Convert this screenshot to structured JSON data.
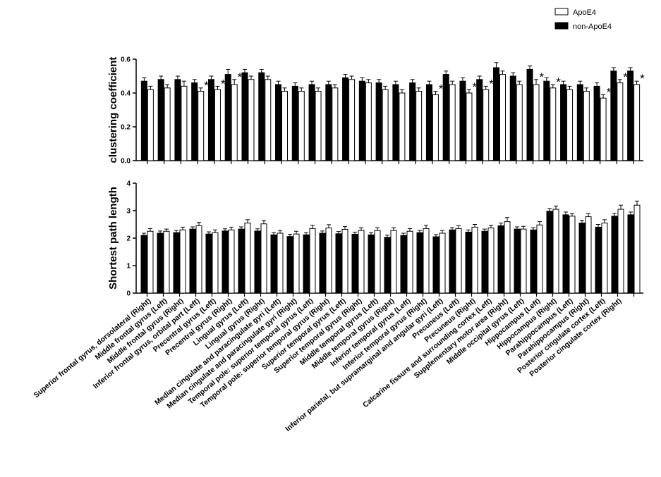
{
  "legend": {
    "apoe4": "ApoE4",
    "non_apoe4": "non-ApoE4"
  },
  "colors": {
    "non_apoe4": "#000000",
    "apoe4": "#ffffff",
    "stroke": "#000000"
  },
  "significance_marker": "*",
  "chart_data": [
    {
      "type": "bar",
      "ylabel": "clustering coefficient",
      "ylim": [
        0,
        0.6
      ],
      "yticks": [
        "0.0",
        "0.2",
        "0.4",
        "0.6"
      ],
      "categories": [
        "Superior frontal gyrus, dorsolateral (Right)",
        "Middle frontal gyrus (Left)",
        "Middle frontal gyrus (Right)",
        "Inferior frontal gyrus, orbital part (Left)",
        "Precentral gyrus (Left)",
        "Precentral gyrus (Right)",
        "Lingual gyrus (Left)",
        "Lingual gyrus (Right)",
        "Median cingulate and paracingulate gyri (Left)",
        "Median cingulate and paracingulate gyri (Right)",
        "Temporal pole: superior temporal gyrus (Left)",
        "Temporal pole: superior temporal gyrus (Right)",
        "Superior temporal gyrus (Left)",
        "Superior temporal gyrus (Right)",
        "Middle temporal gyrus (Left)",
        "Middle temporal gyrus (Right)",
        "Inferior temporal gyrus (Left)",
        "Inferior temporal gyrus (Right)",
        "Inferior parietal, but supramarginal and angular gyri (Left)",
        "Precuneus (Left)",
        "Precuneus (Right)",
        "Calcarine fissure and surrounding cortex (Left)",
        "Supplementary motor area (Right)",
        "Middle occipital gyrus (Left)",
        "Hippocampus (Left)",
        "Hippocampus (Right)",
        "Parahippocampus (Left)",
        "Parahippocampus (Right)",
        "Posterior cingulate cortex (Left)",
        "Posterior cingulate cortex (Right)"
      ],
      "series": [
        {
          "name": "non-ApoE4",
          "values": [
            0.47,
            0.48,
            0.48,
            0.46,
            0.48,
            0.51,
            0.52,
            0.52,
            0.45,
            0.44,
            0.45,
            0.45,
            0.49,
            0.47,
            0.46,
            0.45,
            0.46,
            0.45,
            0.51,
            0.47,
            0.48,
            0.55,
            0.5,
            0.54,
            0.47,
            0.45,
            0.45,
            0.44,
            0.53,
            0.53
          ],
          "errors": [
            0.02,
            0.02,
            0.02,
            0.02,
            0.02,
            0.03,
            0.02,
            0.02,
            0.02,
            0.02,
            0.02,
            0.02,
            0.02,
            0.02,
            0.02,
            0.02,
            0.02,
            0.02,
            0.02,
            0.02,
            0.02,
            0.03,
            0.02,
            0.02,
            0.02,
            0.02,
            0.02,
            0.02,
            0.02,
            0.02
          ]
        },
        {
          "name": "ApoE4",
          "values": [
            0.42,
            0.43,
            0.44,
            0.41,
            0.42,
            0.45,
            0.48,
            0.48,
            0.41,
            0.41,
            0.41,
            0.43,
            0.48,
            0.46,
            0.42,
            0.4,
            0.41,
            0.39,
            0.45,
            0.4,
            0.42,
            0.51,
            0.45,
            0.45,
            0.43,
            0.42,
            0.41,
            0.37,
            0.46,
            0.45
          ],
          "errors": [
            0.02,
            0.02,
            0.03,
            0.02,
            0.02,
            0.03,
            0.02,
            0.02,
            0.02,
            0.02,
            0.02,
            0.02,
            0.02,
            0.02,
            0.02,
            0.02,
            0.02,
            0.02,
            0.02,
            0.02,
            0.02,
            0.02,
            0.02,
            0.03,
            0.02,
            0.02,
            0.02,
            0.02,
            0.02,
            0.02
          ]
        }
      ],
      "significant": [
        3,
        4,
        5,
        17,
        19,
        20,
        23,
        24,
        27,
        28,
        29
      ]
    },
    {
      "type": "bar",
      "ylabel": "Shortest path length",
      "ylim": [
        0,
        4
      ],
      "yticks": [
        "0",
        "1",
        "2",
        "3",
        "4"
      ],
      "series": [
        {
          "name": "non-ApoE4",
          "values": [
            2.1,
            2.18,
            2.2,
            2.33,
            2.15,
            2.26,
            2.33,
            2.26,
            2.12,
            2.06,
            2.12,
            2.18,
            2.16,
            2.14,
            2.12,
            2.03,
            2.1,
            2.2,
            2.05,
            2.3,
            2.22,
            2.25,
            2.45,
            2.33,
            2.3,
            2.98,
            2.85,
            2.55,
            2.4,
            2.8,
            2.85
          ],
          "errors": [
            0.08,
            0.08,
            0.08,
            0.08,
            0.08,
            0.08,
            0.08,
            0.08,
            0.08,
            0.08,
            0.08,
            0.08,
            0.08,
            0.08,
            0.08,
            0.08,
            0.08,
            0.08,
            0.08,
            0.08,
            0.08,
            0.08,
            0.1,
            0.08,
            0.08,
            0.1,
            0.1,
            0.1,
            0.1,
            0.1,
            0.1
          ]
        },
        {
          "name": "ApoE4",
          "values": [
            2.25,
            2.25,
            2.3,
            2.45,
            2.2,
            2.3,
            2.55,
            2.52,
            2.18,
            2.15,
            2.35,
            2.37,
            2.32,
            2.28,
            2.28,
            2.28,
            2.25,
            2.35,
            2.18,
            2.35,
            2.4,
            2.37,
            2.6,
            2.33,
            2.48,
            3.05,
            2.8,
            2.78,
            2.55,
            3.05,
            3.2
          ],
          "errors": [
            0.1,
            0.08,
            0.1,
            0.12,
            0.1,
            0.1,
            0.12,
            0.12,
            0.1,
            0.1,
            0.12,
            0.12,
            0.1,
            0.1,
            0.1,
            0.1,
            0.1,
            0.12,
            0.1,
            0.1,
            0.1,
            0.1,
            0.15,
            0.1,
            0.12,
            0.12,
            0.1,
            0.12,
            0.12,
            0.15,
            0.15
          ]
        }
      ]
    }
  ]
}
